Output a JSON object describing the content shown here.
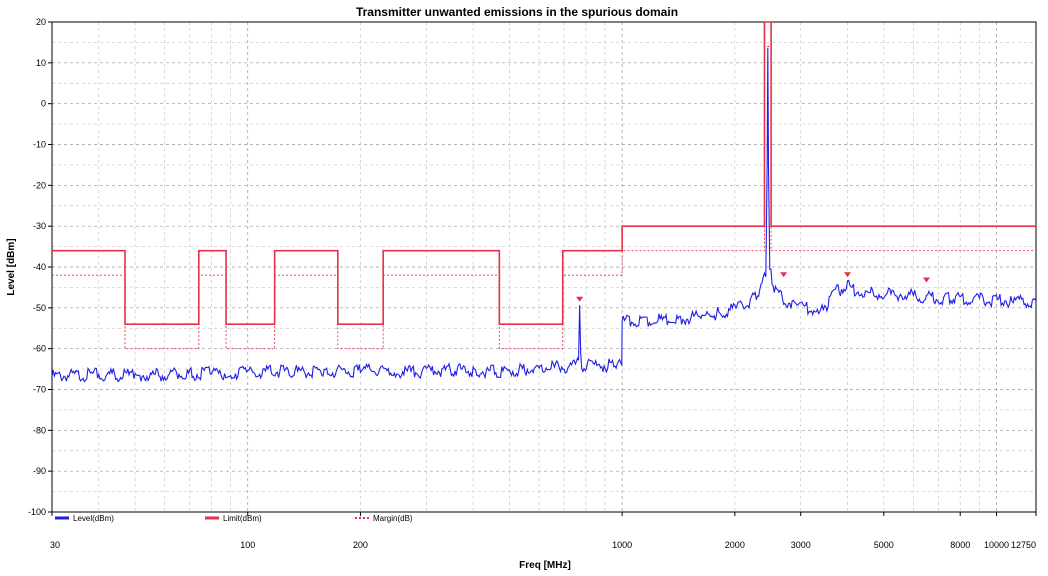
{
  "chart_data": {
    "type": "line",
    "title": "Transmitter unwanted emissions in the spurious domain",
    "xlabel": "Freq [MHz]",
    "ylabel": "Level [dBm]",
    "xscale": "log",
    "xlim": [
      30,
      12750
    ],
    "ylim": [
      -100,
      20
    ],
    "grid": true,
    "xticks": [
      30,
      100,
      200,
      1000,
      2000,
      3000,
      5000,
      8000,
      10000,
      12750
    ],
    "xtick_labels": [
      "30",
      "100",
      "200",
      "1000",
      "2000",
      "3000",
      "5000",
      "8000",
      "10000",
      "12750"
    ],
    "yticks": [
      20,
      10,
      0,
      -10,
      -20,
      -30,
      -40,
      -50,
      -60,
      -70,
      -80,
      -90,
      -100
    ],
    "ytick_labels": [
      "20",
      "10",
      "0",
      "-10",
      "-20",
      "-30",
      "-40",
      "-50",
      "-60",
      "-70",
      "-80",
      "-90",
      "-100"
    ],
    "legend_position": "bottom-left",
    "series": [
      {
        "name": "Level(dBm)",
        "color": "#1f1fe6",
        "style": "solid",
        "points": [
          [
            30,
            -66
          ],
          [
            40,
            -65.5
          ],
          [
            50,
            -65.8
          ],
          [
            60,
            -65.6
          ],
          [
            70,
            -65.4
          ],
          [
            80,
            -65.2
          ],
          [
            90,
            -65.2
          ],
          [
            100,
            -65.0
          ],
          [
            130,
            -64.8
          ],
          [
            160,
            -64.8
          ],
          [
            200,
            -64.6
          ],
          [
            250,
            -64.8
          ],
          [
            300,
            -64.8
          ],
          [
            350,
            -64.4
          ],
          [
            400,
            -64.6
          ],
          [
            470,
            -64.8
          ],
          [
            550,
            -64.2
          ],
          [
            650,
            -63.8
          ],
          [
            700,
            -63.6
          ],
          [
            750,
            -63.4
          ],
          [
            765,
            -61
          ],
          [
            770,
            -49
          ],
          [
            775,
            -61
          ],
          [
            780,
            -63.4
          ],
          [
            850,
            -63.4
          ],
          [
            950,
            -63.2
          ],
          [
            998,
            -63.6
          ],
          [
            1000,
            -52.6
          ],
          [
            1200,
            -52.3
          ],
          [
            1400,
            -51.9
          ],
          [
            1600,
            -51.3
          ],
          [
            1800,
            -50.6
          ],
          [
            2000,
            -49.6
          ],
          [
            2100,
            -48.6
          ],
          [
            2200,
            -47.4
          ],
          [
            2300,
            -45.6
          ],
          [
            2380,
            -43
          ],
          [
            2420,
            -40
          ],
          [
            2440,
            -14
          ],
          [
            2450,
            13
          ],
          [
            2460,
            -14
          ],
          [
            2480,
            -40
          ],
          [
            2550,
            -44.5
          ],
          [
            2700,
            -47.5
          ],
          [
            3000,
            -49
          ],
          [
            3300,
            -49.5
          ],
          [
            3550,
            -50.2
          ],
          [
            3600,
            -45.5
          ],
          [
            3800,
            -45
          ],
          [
            4000,
            -43.5
          ],
          [
            4300,
            -45.5
          ],
          [
            4600,
            -45.5
          ],
          [
            5000,
            -46
          ],
          [
            5500,
            -45.8
          ],
          [
            6500,
            -46.6
          ],
          [
            7500,
            -47
          ],
          [
            9000,
            -47.2
          ],
          [
            11000,
            -47.4
          ],
          [
            12750,
            -47.6
          ]
        ]
      },
      {
        "name": "Limit(dBm)",
        "color": "#e8304a",
        "style": "solid",
        "points": [
          [
            30,
            -36
          ],
          [
            47,
            -36
          ],
          [
            47,
            -54
          ],
          [
            74,
            -54
          ],
          [
            74,
            -36
          ],
          [
            87.5,
            -36
          ],
          [
            87.5,
            -54
          ],
          [
            118,
            -54
          ],
          [
            118,
            -36
          ],
          [
            174,
            -36
          ],
          [
            174,
            -54
          ],
          [
            230,
            -54
          ],
          [
            230,
            -36
          ],
          [
            470,
            -36
          ],
          [
            470,
            -54
          ],
          [
            694,
            -54
          ],
          [
            694,
            -36
          ],
          [
            1000,
            -36
          ],
          [
            1000,
            -30
          ],
          [
            2400,
            -30
          ],
          [
            2400,
            20
          ],
          [
            2500,
            20
          ],
          [
            2500,
            -30
          ],
          [
            12750,
            -30
          ]
        ]
      },
      {
        "name": "Margin(dB)",
        "color": "#e8304a",
        "style": "dotted",
        "points": [
          [
            30,
            -42
          ],
          [
            47,
            -42
          ],
          [
            47,
            -60
          ],
          [
            74,
            -60
          ],
          [
            74,
            -42
          ],
          [
            87.5,
            -42
          ],
          [
            87.5,
            -60
          ],
          [
            118,
            -60
          ],
          [
            118,
            -42
          ],
          [
            174,
            -42
          ],
          [
            174,
            -60
          ],
          [
            230,
            -60
          ],
          [
            230,
            -42
          ],
          [
            470,
            -42
          ],
          [
            470,
            -60
          ],
          [
            694,
            -60
          ],
          [
            694,
            -42
          ],
          [
            1000,
            -42
          ],
          [
            1000,
            -36
          ],
          [
            2400,
            -36
          ],
          [
            2400,
            14
          ],
          [
            2500,
            14
          ],
          [
            2500,
            -36
          ],
          [
            12750,
            -36
          ]
        ]
      }
    ],
    "markers": [
      {
        "x": 770,
        "y": -48.5
      },
      {
        "x": 2700,
        "y": -42.5
      },
      {
        "x": 4000,
        "y": -42.5
      },
      {
        "x": 6500,
        "y": -43.8
      }
    ]
  }
}
